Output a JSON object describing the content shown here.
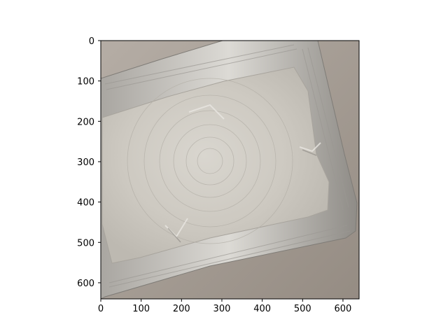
{
  "image": {
    "description_colors": {
      "background": "#a59d95",
      "foil_light": "#d6d3cc",
      "foil_mid": "#c3c0b8",
      "foil_dark": "#8e8c88"
    }
  },
  "axes": {
    "x_ticks": [
      "0",
      "100",
      "200",
      "300",
      "400",
      "500",
      "600"
    ],
    "y_ticks": [
      "0",
      "100",
      "200",
      "300",
      "400",
      "500",
      "600"
    ],
    "x_range": [
      0,
      640
    ],
    "y_range": [
      0,
      640
    ]
  }
}
